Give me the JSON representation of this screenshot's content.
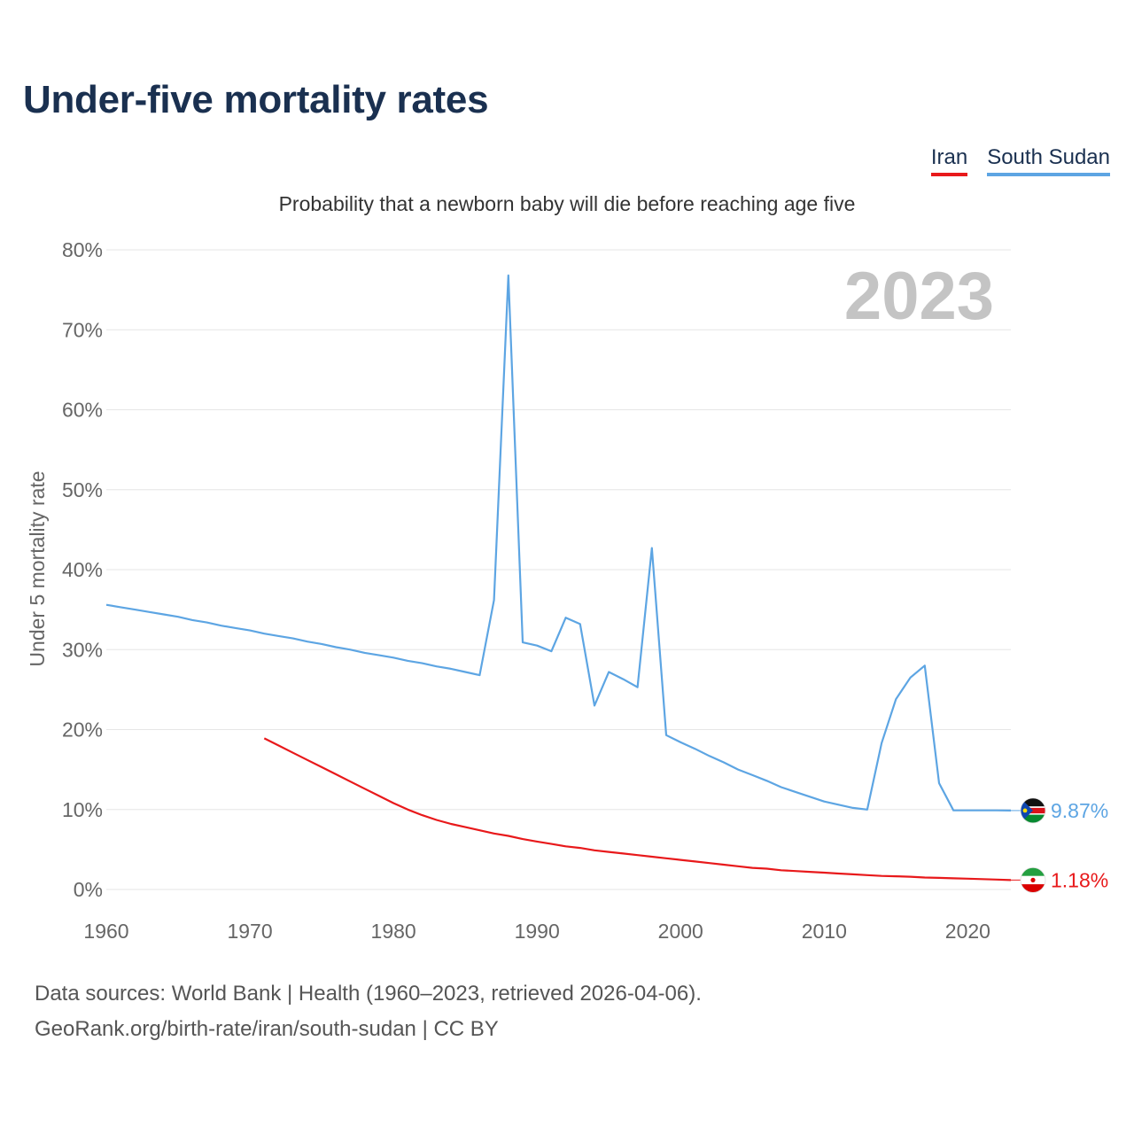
{
  "title": "Under-five mortality rates",
  "subtitle": "Probability that a newborn baby will die before reaching age five",
  "year_watermark": "2023",
  "footer": {
    "line1": "Data sources: World Bank | Health (1960–2023, retrieved 2026-04-06).",
    "line2": "GeoRank.org/birth-rate/iran/south-sudan | CC BY"
  },
  "legend": [
    {
      "name": "Iran",
      "color": "#e8191b"
    },
    {
      "name": "South Sudan",
      "color": "#5da5e3"
    }
  ],
  "chart_data": {
    "type": "line",
    "title": "Under-five mortality rates",
    "subtitle": "Probability that a newborn baby will die before reaching age five",
    "xlabel": "",
    "ylabel": "Under 5 mortality rate",
    "xlim": [
      1960,
      2023
    ],
    "ylim": [
      0,
      80
    ],
    "x_ticks": [
      1960,
      1970,
      1980,
      1990,
      2000,
      2010,
      2020
    ],
    "y_ticks": [
      0,
      10,
      20,
      30,
      40,
      50,
      60,
      70,
      80
    ],
    "y_tick_labels": [
      "0%",
      "10%",
      "20%",
      "30%",
      "40%",
      "50%",
      "60%",
      "70%",
      "80%"
    ],
    "grid": true,
    "series": [
      {
        "name": "South Sudan",
        "color": "#5da5e3",
        "end_label": "9.87%",
        "flag": "south-sudan-flag-icon",
        "x": [
          1960,
          1961,
          1962,
          1963,
          1964,
          1965,
          1966,
          1967,
          1968,
          1969,
          1970,
          1971,
          1972,
          1973,
          1974,
          1975,
          1976,
          1977,
          1978,
          1979,
          1980,
          1981,
          1982,
          1983,
          1984,
          1985,
          1986,
          1987,
          1988,
          1989,
          1990,
          1991,
          1992,
          1993,
          1994,
          1995,
          1996,
          1997,
          1998,
          1999,
          2000,
          2001,
          2002,
          2003,
          2004,
          2005,
          2006,
          2007,
          2008,
          2009,
          2010,
          2011,
          2012,
          2013,
          2014,
          2015,
          2016,
          2017,
          2018,
          2019,
          2020,
          2021,
          2022,
          2023
        ],
        "values": [
          35.6,
          35.3,
          35.0,
          34.7,
          34.4,
          34.1,
          33.7,
          33.4,
          33.0,
          32.7,
          32.4,
          32.0,
          31.7,
          31.4,
          31.0,
          30.7,
          30.3,
          30.0,
          29.6,
          29.3,
          29.0,
          28.6,
          28.3,
          27.9,
          27.6,
          27.2,
          26.8,
          36.2,
          76.8,
          30.9,
          30.5,
          29.8,
          34.0,
          33.2,
          23.0,
          27.2,
          26.3,
          25.3,
          42.7,
          19.3,
          18.4,
          17.6,
          16.7,
          15.9,
          15.0,
          14.3,
          13.6,
          12.8,
          12.2,
          11.6,
          11.0,
          10.6,
          10.2,
          10.0,
          18.3,
          23.8,
          26.5,
          28.0,
          13.3,
          9.9,
          9.9,
          9.9,
          9.9,
          9.87
        ]
      },
      {
        "name": "Iran",
        "color": "#e8191b",
        "end_label": "1.18%",
        "flag": "iran-flag-icon",
        "x": [
          1971,
          1972,
          1973,
          1974,
          1975,
          1976,
          1977,
          1978,
          1979,
          1980,
          1981,
          1982,
          1983,
          1984,
          1985,
          1986,
          1987,
          1988,
          1989,
          1990,
          1991,
          1992,
          1993,
          1994,
          1995,
          1996,
          1997,
          1998,
          1999,
          2000,
          2001,
          2002,
          2003,
          2004,
          2005,
          2006,
          2007,
          2008,
          2009,
          2010,
          2011,
          2012,
          2013,
          2014,
          2015,
          2016,
          2017,
          2018,
          2019,
          2020,
          2021,
          2022,
          2023
        ],
        "values": [
          18.9,
          18.0,
          17.1,
          16.2,
          15.3,
          14.4,
          13.5,
          12.6,
          11.7,
          10.8,
          10.0,
          9.3,
          8.7,
          8.2,
          7.8,
          7.4,
          7.0,
          6.7,
          6.3,
          6.0,
          5.7,
          5.4,
          5.2,
          4.9,
          4.7,
          4.5,
          4.3,
          4.1,
          3.9,
          3.7,
          3.5,
          3.3,
          3.1,
          2.9,
          2.7,
          2.6,
          2.4,
          2.3,
          2.2,
          2.1,
          2.0,
          1.9,
          1.8,
          1.7,
          1.65,
          1.6,
          1.5,
          1.45,
          1.4,
          1.35,
          1.3,
          1.24,
          1.18
        ]
      }
    ]
  }
}
